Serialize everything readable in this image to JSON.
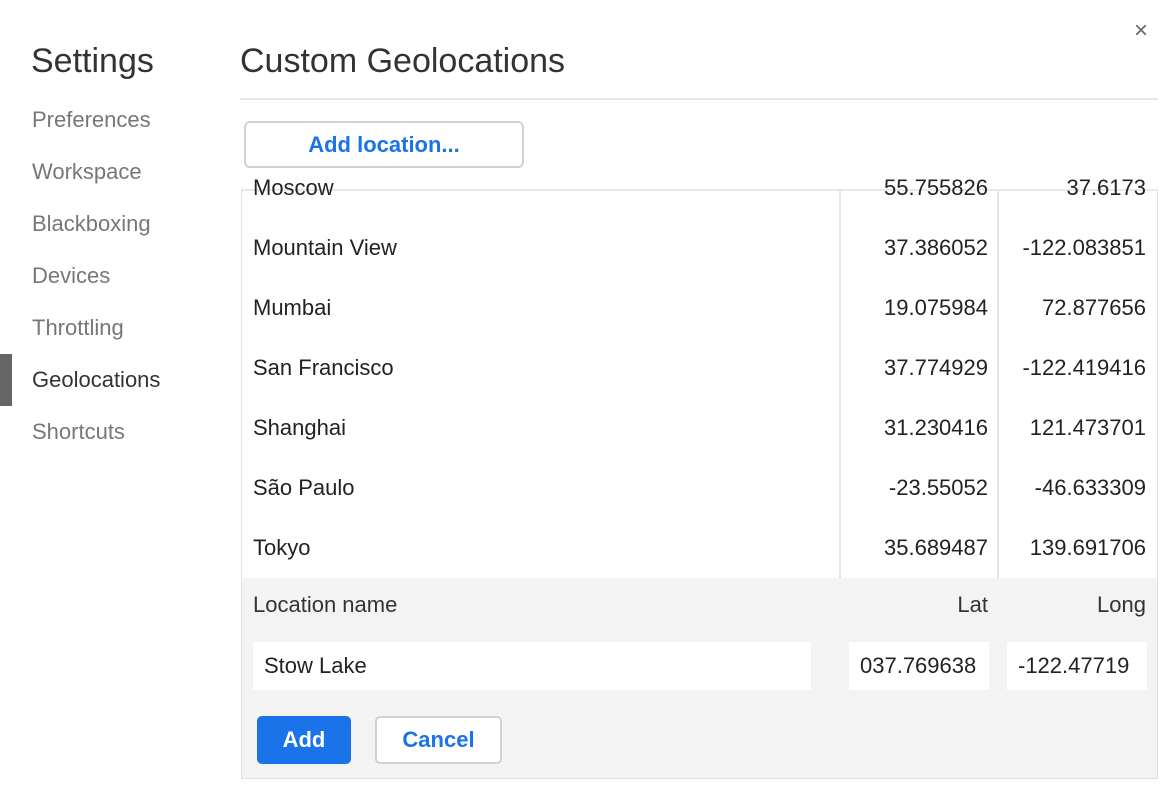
{
  "sidebar": {
    "title": "Settings",
    "items": [
      {
        "label": "Preferences"
      },
      {
        "label": "Workspace"
      },
      {
        "label": "Blackboxing"
      },
      {
        "label": "Devices"
      },
      {
        "label": "Throttling"
      },
      {
        "label": "Geolocations",
        "selected": true
      },
      {
        "label": "Shortcuts"
      }
    ]
  },
  "header": {
    "title": "Custom Geolocations",
    "close_icon": "×"
  },
  "add_location_label": "Add location...",
  "locations": [
    {
      "name": "Moscow",
      "lat": "55.755826",
      "long": "37.6173"
    },
    {
      "name": "Mountain View",
      "lat": "37.386052",
      "long": "-122.083851"
    },
    {
      "name": "Mumbai",
      "lat": "19.075984",
      "long": "72.877656"
    },
    {
      "name": "San Francisco",
      "lat": "37.774929",
      "long": "-122.419416"
    },
    {
      "name": "Shanghai",
      "lat": "31.230416",
      "long": "121.473701"
    },
    {
      "name": "São Paulo",
      "lat": "-23.55052",
      "long": "-46.633309"
    },
    {
      "name": "Tokyo",
      "lat": "35.689487",
      "long": "139.691706"
    }
  ],
  "editor": {
    "name_label": "Location name",
    "lat_label": "Lat",
    "long_label": "Long",
    "name_value": "Stow Lake",
    "lat_value": "037.769638",
    "long_value": "-122.47719",
    "add_label": "Add",
    "cancel_label": "Cancel"
  },
  "colors": {
    "accent": "#1a73e8"
  }
}
